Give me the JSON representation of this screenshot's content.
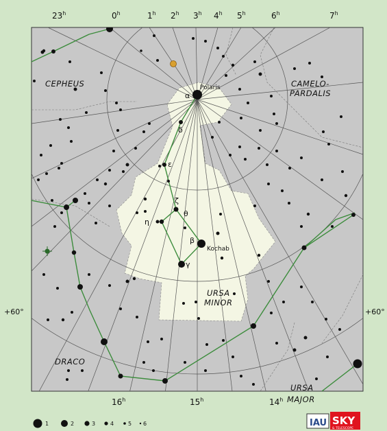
{
  "ra_labels": [
    {
      "id": "ra-23",
      "hour": "23",
      "sup": "h"
    },
    {
      "id": "ra-0",
      "hour": "0",
      "sup": "h"
    },
    {
      "id": "ra-1",
      "hour": "1",
      "sup": "h"
    },
    {
      "id": "ra-2",
      "hour": "2",
      "sup": "h"
    },
    {
      "id": "ra-3",
      "hour": "3",
      "sup": "h"
    },
    {
      "id": "ra-4",
      "hour": "4",
      "sup": "h"
    },
    {
      "id": "ra-5",
      "hour": "5",
      "sup": "h"
    },
    {
      "id": "ra-6",
      "hour": "6",
      "sup": "h"
    },
    {
      "id": "ra-7",
      "hour": "7",
      "sup": "h"
    },
    {
      "id": "ra-16",
      "hour": "16",
      "sup": "h"
    },
    {
      "id": "ra-15",
      "hour": "15",
      "sup": "h"
    },
    {
      "id": "ra-14",
      "hour": "14",
      "sup": "h"
    }
  ],
  "dec_labels": [
    {
      "id": "dec-left",
      "text": "+60°"
    },
    {
      "id": "dec-right",
      "text": "+60°"
    }
  ],
  "constellations": {
    "cepheus": "CEPHEUS",
    "camelopardalis_1": "CAMELO-",
    "camelopardalis_2": "PARDALIS",
    "ursa_minor_1": "URSA",
    "ursa_minor_2": "MINOR",
    "draco": "DRACO",
    "ursa_major_1": "URSA",
    "ursa_major_2": "MAJOR"
  },
  "star_names": {
    "polaris": "Polaris",
    "kochab": "Kochab"
  },
  "greek_letters": {
    "alpha": "α",
    "delta": "δ",
    "epsilon": "ε",
    "zeta": "ζ",
    "eta": "η",
    "theta": "θ",
    "beta": "β",
    "gamma": "γ"
  },
  "legend": {
    "magnitudes": [
      "1",
      "2",
      "3",
      "4",
      "5",
      "6"
    ]
  },
  "logos": {
    "iau": "IAU",
    "sky": "SKY",
    "sky_sub": "& TELESCOPE"
  },
  "colors": {
    "background": "#d2e6c8",
    "chart_bg": "#c8c8c8",
    "constellation_area": "#f4f6e4",
    "stick_line": "#3c8c3c",
    "grid_line": "#555555",
    "planet": "#d9a030",
    "sky_logo": "#e0141e"
  }
}
